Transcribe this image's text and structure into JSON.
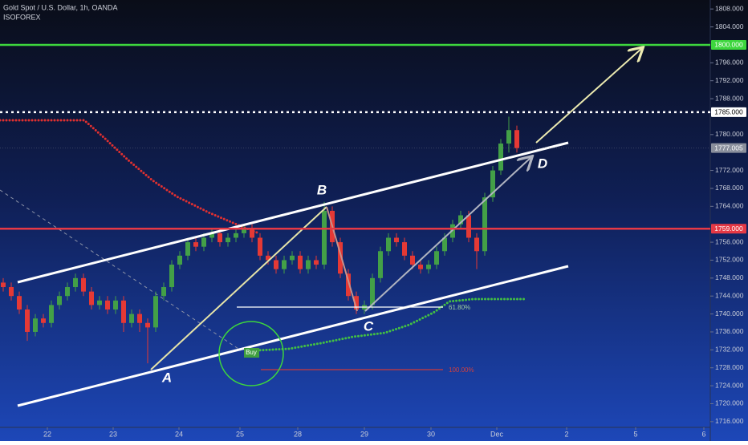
{
  "header": {
    "title": "Gold Spot / U.S. Dollar, 1h, OANDA",
    "author": "ISOFOREX"
  },
  "chart_data": {
    "type": "candlestick",
    "up_color": "#43a047",
    "down_color": "#e53935",
    "ohlc": [
      [
        1747,
        1748,
        1745,
        1746
      ],
      [
        1746,
        1747,
        1743,
        1744
      ],
      [
        1744,
        1745,
        1740,
        1741
      ],
      [
        1741,
        1742,
        1734,
        1736
      ],
      [
        1736,
        1740,
        1735,
        1739
      ],
      [
        1739,
        1740,
        1737,
        1738
      ],
      [
        1738,
        1743,
        1737,
        1742
      ],
      [
        1742,
        1745,
        1741,
        1744
      ],
      [
        1744,
        1747,
        1743,
        1746
      ],
      [
        1746,
        1749,
        1745,
        1748
      ],
      [
        1748,
        1749,
        1744,
        1745
      ],
      [
        1745,
        1746,
        1741,
        1742
      ],
      [
        1742,
        1744,
        1741,
        1743
      ],
      [
        1743,
        1744,
        1740,
        1741
      ],
      [
        1741,
        1744,
        1740,
        1743
      ],
      [
        1743,
        1744,
        1736,
        1738
      ],
      [
        1738,
        1741,
        1737,
        1740
      ],
      [
        1740,
        1741,
        1736,
        1738
      ],
      [
        1738,
        1739,
        1729,
        1737
      ],
      [
        1737,
        1745,
        1736,
        1744
      ],
      [
        1744,
        1747,
        1743,
        1746
      ],
      [
        1746,
        1752,
        1745,
        1751
      ],
      [
        1751,
        1754,
        1750,
        1753
      ],
      [
        1753,
        1757,
        1752,
        1756
      ],
      [
        1756,
        1757,
        1754,
        1755
      ],
      [
        1755,
        1758,
        1754,
        1757
      ],
      [
        1757,
        1759,
        1756,
        1758
      ],
      [
        1758,
        1759,
        1755,
        1756
      ],
      [
        1756,
        1758,
        1755,
        1757
      ],
      [
        1757,
        1759,
        1756,
        1758
      ],
      [
        1758,
        1760,
        1757,
        1759
      ],
      [
        1759,
        1760,
        1756,
        1757
      ],
      [
        1757,
        1758,
        1752,
        1753
      ],
      [
        1753,
        1754,
        1751,
        1752
      ],
      [
        1752,
        1753,
        1749,
        1750
      ],
      [
        1750,
        1753,
        1749,
        1752
      ],
      [
        1752,
        1754,
        1751,
        1753
      ],
      [
        1753,
        1754,
        1749,
        1750
      ],
      [
        1750,
        1753,
        1749,
        1752
      ],
      [
        1752,
        1753,
        1750,
        1751
      ],
      [
        1751,
        1765,
        1750,
        1763
      ],
      [
        1763,
        1764,
        1755,
        1756
      ],
      [
        1756,
        1757,
        1748,
        1749
      ],
      [
        1749,
        1750,
        1743,
        1744
      ],
      [
        1744,
        1745,
        1740,
        1741
      ],
      [
        1741,
        1743,
        1740,
        1742
      ],
      [
        1742,
        1749,
        1741,
        1748
      ],
      [
        1748,
        1755,
        1747,
        1754
      ],
      [
        1754,
        1758,
        1753,
        1757
      ],
      [
        1757,
        1758,
        1755,
        1756
      ],
      [
        1756,
        1757,
        1752,
        1753
      ],
      [
        1753,
        1754,
        1750,
        1751
      ],
      [
        1751,
        1752,
        1749,
        1750
      ],
      [
        1750,
        1752,
        1749,
        1751
      ],
      [
        1751,
        1755,
        1750,
        1754
      ],
      [
        1754,
        1758,
        1753,
        1757
      ],
      [
        1757,
        1761,
        1756,
        1760
      ],
      [
        1760,
        1763,
        1759,
        1762
      ],
      [
        1762,
        1763,
        1756,
        1757
      ],
      [
        1757,
        1758,
        1750,
        1754
      ],
      [
        1754,
        1767,
        1753,
        1766
      ],
      [
        1766,
        1773,
        1765,
        1772
      ],
      [
        1772,
        1779,
        1771,
        1778
      ],
      [
        1778,
        1784,
        1776,
        1781
      ],
      [
        1781,
        1782,
        1776,
        1777
      ]
    ],
    "xlim": [
      -0.4,
      88.1
    ],
    "xticks": [
      {
        "value": 5.5,
        "label": "22"
      },
      {
        "value": 13.7,
        "label": "23"
      },
      {
        "value": 21.9,
        "label": "24"
      },
      {
        "value": 29.5,
        "label": "25"
      },
      {
        "value": 36.7,
        "label": "28"
      },
      {
        "value": 45,
        "label": "29"
      },
      {
        "value": 53.3,
        "label": "30"
      },
      {
        "value": 61.5,
        "label": "Dec"
      },
      {
        "value": 70.2,
        "label": "2"
      },
      {
        "value": 78.8,
        "label": "5"
      },
      {
        "value": 87.3,
        "label": "6"
      }
    ],
    "ylim": [
      1714.9,
      1810.0
    ],
    "yticks": [
      {
        "value": 1808,
        "label": "1808.000"
      },
      {
        "value": 1804,
        "label": "1804.000"
      },
      {
        "value": 1796,
        "label": "1796.000"
      },
      {
        "value": 1792,
        "label": "1792.000"
      },
      {
        "value": 1788,
        "label": "1788.000"
      },
      {
        "value": 1780,
        "label": "1780.000"
      },
      {
        "value": 1772,
        "label": "1772.000"
      },
      {
        "value": 1768,
        "label": "1768.000"
      },
      {
        "value": 1764,
        "label": "1764.000"
      },
      {
        "value": 1756,
        "label": "1756.000"
      },
      {
        "value": 1752,
        "label": "1752.000"
      },
      {
        "value": 1748,
        "label": "1748.000"
      },
      {
        "value": 1744,
        "label": "1744.000"
      },
      {
        "value": 1740,
        "label": "1740.000"
      },
      {
        "value": 1736,
        "label": "1736.000"
      },
      {
        "value": 1732,
        "label": "1732.000"
      },
      {
        "value": 1728,
        "label": "1728.000"
      },
      {
        "value": 1724,
        "label": "1724.000"
      },
      {
        "value": 1720,
        "label": "1720.000"
      },
      {
        "value": 1716,
        "label": "1716.000"
      }
    ],
    "levels": [
      {
        "value": 1800,
        "label": "1800.000",
        "color": "#3dd63d",
        "style": "solid"
      },
      {
        "value": 1785,
        "label": "1785.000",
        "color": "#ffffff",
        "style": "dotted"
      },
      {
        "value": 1777.005,
        "label": "1777.005",
        "color": "#8a8f9c",
        "style": "faint"
      },
      {
        "value": 1759,
        "label": "1759.000",
        "color": "#e53945",
        "style": "solid"
      }
    ],
    "annotations": [
      "A",
      "B",
      "C",
      "D",
      "Buy",
      "61.80%",
      "100.00%"
    ]
  }
}
